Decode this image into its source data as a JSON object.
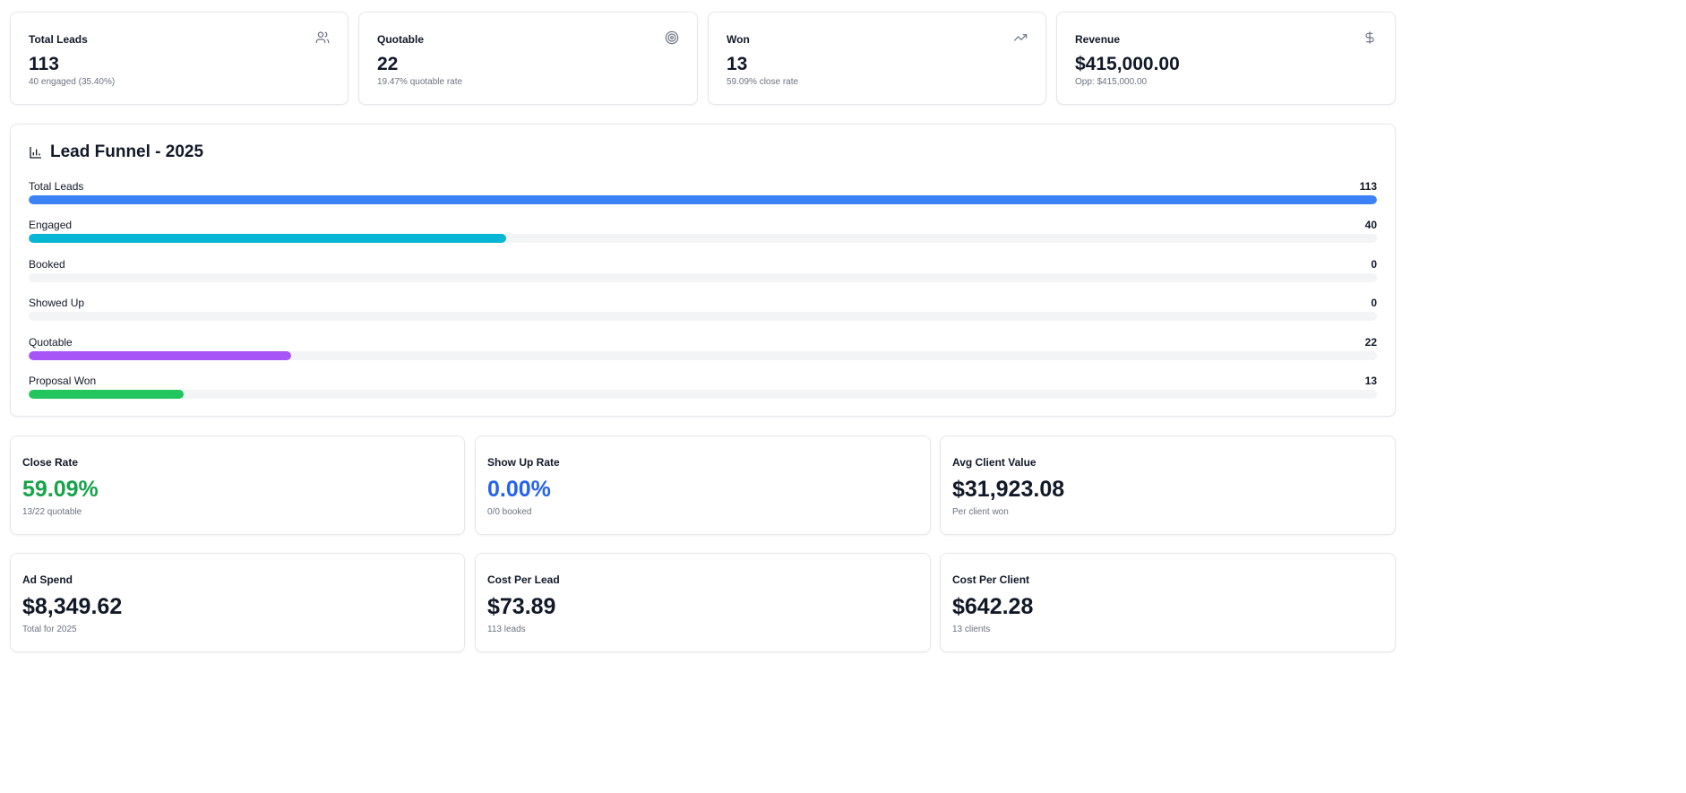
{
  "kpis": [
    {
      "title": "Total Leads",
      "value": "113",
      "sub": "40 engaged (35.40%)",
      "icon": "users-icon"
    },
    {
      "title": "Quotable",
      "value": "22",
      "sub": "19.47% quotable rate",
      "icon": "target-icon"
    },
    {
      "title": "Won",
      "value": "13",
      "sub": "59.09% close rate",
      "icon": "trending-up-icon"
    },
    {
      "title": "Revenue",
      "value": "$415,000.00",
      "sub": "Opp: $415,000.00",
      "icon": "dollar-icon"
    }
  ],
  "funnel": {
    "title": "Lead Funnel - 2025",
    "max": 113,
    "stages": [
      {
        "label": "Total Leads",
        "count": 113,
        "color": "#3b82f6"
      },
      {
        "label": "Engaged",
        "count": 40,
        "color": "#06b6d4"
      },
      {
        "label": "Booked",
        "count": 0,
        "color": "#f59e0b"
      },
      {
        "label": "Showed Up",
        "count": 0,
        "color": "#f97316"
      },
      {
        "label": "Quotable",
        "count": 22,
        "color": "#a855f7"
      },
      {
        "label": "Proposal Won",
        "count": 13,
        "color": "#22c55e"
      }
    ]
  },
  "metrics": [
    {
      "title": "Close Rate",
      "value": "59.09%",
      "sub": "13/22 quotable",
      "color": "#16a34a"
    },
    {
      "title": "Show Up Rate",
      "value": "0.00%",
      "sub": "0/0 booked",
      "color": "#2563eb"
    },
    {
      "title": "Avg Client Value",
      "value": "$31,923.08",
      "sub": "Per client won",
      "color": "#111827"
    },
    {
      "title": "Ad Spend",
      "value": "$8,349.62",
      "sub": "Total for 2025",
      "color": "#111827"
    },
    {
      "title": "Cost Per Lead",
      "value": "$73.89",
      "sub": "113 leads",
      "color": "#111827"
    },
    {
      "title": "Cost Per Client",
      "value": "$642.28",
      "sub": "13 clients",
      "color": "#111827"
    }
  ]
}
